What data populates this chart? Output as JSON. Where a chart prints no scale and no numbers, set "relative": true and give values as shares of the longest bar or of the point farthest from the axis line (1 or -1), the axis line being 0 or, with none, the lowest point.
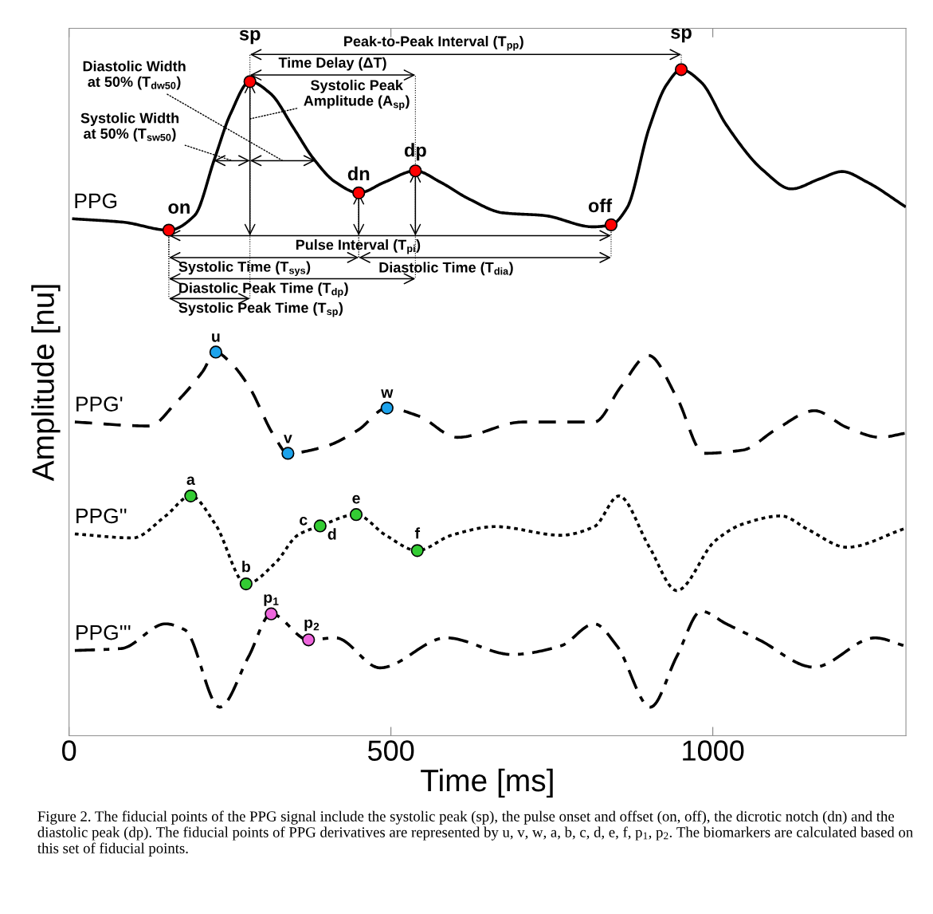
{
  "chart_data": {
    "type": "line",
    "relative": true,
    "xlabel": "Time [ms]",
    "ylabel": "Amplitude [nu]",
    "xlim": [
      0,
      1300
    ],
    "xticks": [
      0,
      500,
      1000
    ],
    "tick_labels": "x",
    "grid": false,
    "legend": false,
    "series": [
      {
        "name": "PPG",
        "color": "#000000",
        "line_style": "solid",
        "x": [
          7,
          84,
          155,
          195,
          226,
          251,
          281,
          313,
          349,
          380,
          414,
          450,
          490,
          538,
          577,
          621,
          674,
          738,
          814,
          842,
          867,
          901,
          928,
          951,
          982,
          1021,
          1078,
          1122,
          1166,
          1201,
          1240,
          1298
        ],
        "values": [
          0.776,
          0.771,
          0.759,
          0.781,
          0.866,
          0.934,
          0.982,
          0.964,
          0.912,
          0.866,
          0.831,
          0.815,
          0.831,
          0.848,
          0.831,
          0.806,
          0.785,
          0.781,
          0.764,
          0.767,
          0.793,
          0.912,
          0.977,
          1.0,
          0.981,
          0.917,
          0.849,
          0.821,
          0.836,
          0.847,
          0.831,
          0.795
        ]
      },
      {
        "name": "PPG'",
        "color": "#000000",
        "line_style": "dashed",
        "x": [
          9,
          125,
          166,
          207,
          228,
          248,
          279,
          318,
          340,
          397,
          449,
          494,
          543,
          603,
          705,
          816,
          858,
          900,
          944,
          986,
          1047,
          1097,
          1158,
          1208,
          1260,
          1298
        ],
        "values": [
          0.471,
          0.465,
          0.5,
          0.546,
          0.576,
          0.563,
          0.525,
          0.451,
          0.424,
          0.434,
          0.459,
          0.492,
          0.48,
          0.448,
          0.471,
          0.471,
          0.525,
          0.571,
          0.508,
          0.424,
          0.429,
          0.459,
          0.488,
          0.463,
          0.448,
          0.454
        ]
      },
      {
        "name": "PPG''",
        "color": "#000000",
        "line_style": "dotted",
        "x": [
          9,
          99,
          150,
          189,
          227,
          275,
          321,
          355,
          390,
          446,
          492,
          541,
          594,
          662,
          764,
          816,
          854,
          901,
          944,
          1004,
          1047,
          1106,
          1149,
          1208,
          1298
        ],
        "values": [
          0.303,
          0.297,
          0.33,
          0.36,
          0.318,
          0.228,
          0.26,
          0.301,
          0.315,
          0.332,
          0.301,
          0.278,
          0.301,
          0.314,
          0.301,
          0.314,
          0.36,
          0.284,
          0.218,
          0.293,
          0.318,
          0.33,
          0.309,
          0.283,
          0.311
        ]
      },
      {
        "name": "PPG'''",
        "color": "#000000",
        "line_style": "dashdot",
        "x": [
          9,
          81,
          150,
          180,
          234,
          279,
          314,
          372,
          414,
          483,
          586,
          688,
          764,
          816,
          851,
          903,
          944,
          982,
          1021,
          1072,
          1157,
          1252,
          1298
        ],
        "values": [
          0.128,
          0.131,
          0.168,
          0.159,
          0.043,
          0.119,
          0.183,
          0.144,
          0.147,
          0.102,
          0.147,
          0.122,
          0.135,
          0.168,
          0.135,
          0.043,
          0.119,
          0.187,
          0.168,
          0.144,
          0.103,
          0.147,
          0.135
        ]
      },
      {
        "type": "scatter",
        "color": "#ff0000",
        "marker": "circle",
        "x": [
          155,
          281,
          450,
          538,
          842,
          951
        ],
        "values": [
          0.759,
          0.982,
          0.815,
          0.848,
          0.767,
          1.0
        ]
      },
      {
        "type": "scatter",
        "color": "#1ca3ec",
        "marker": "circle",
        "x": [
          228,
          340,
          494
        ],
        "values": [
          0.576,
          0.424,
          0.492
        ]
      },
      {
        "type": "scatter",
        "color": "#33cc33",
        "marker": "circle",
        "x": [
          189,
          275,
          390,
          446,
          541
        ],
        "values": [
          0.36,
          0.228,
          0.315,
          0.332,
          0.278
        ]
      },
      {
        "type": "scatter",
        "color": "#ee66dd",
        "marker": "circle",
        "x": [
          314,
          372
        ],
        "values": [
          0.183,
          0.144
        ]
      }
    ],
    "annotations": [
      {
        "text": "on",
        "x": 155,
        "y": 0.759
      },
      {
        "text": "sp",
        "x": 281,
        "y": 0.982
      },
      {
        "text": "dn",
        "x": 450,
        "y": 0.815
      },
      {
        "text": "dp",
        "x": 538,
        "y": 0.848
      },
      {
        "text": "off",
        "x": 842,
        "y": 0.767
      },
      {
        "text": "sp",
        "x": 951,
        "y": 1.0
      },
      {
        "text": "u",
        "x": 228,
        "y": 0.576
      },
      {
        "text": "v",
        "x": 340,
        "y": 0.424
      },
      {
        "text": "w",
        "x": 494,
        "y": 0.492
      },
      {
        "text": "a",
        "x": 189,
        "y": 0.36
      },
      {
        "text": "b",
        "x": 275,
        "y": 0.228
      },
      {
        "text": "c",
        "x": 390,
        "y": 0.315
      },
      {
        "text": "d",
        "x": 390,
        "y": 0.315
      },
      {
        "text": "e",
        "x": 446,
        "y": 0.332
      },
      {
        "text": "f",
        "x": 541,
        "y": 0.278
      },
      {
        "text": "p$_{1}$",
        "x": 314,
        "y": 0.183
      },
      {
        "text": "p$_{2}$",
        "x": 372,
        "y": 0.144
      },
      "Peak-to-Peak Interval (T$_{pp}$)",
      "Time Delay (ΔT)",
      "Pulse Interval (T$_{pi}$)",
      "Systolic Time (T$_{sys}$)",
      "Diastolic Time (T$_{dia}$)",
      "Diastolic Peak Time (T$_{dp}$)",
      "Systolic Peak Time (T$_{sp}$)",
      "Systolic Peak\nAmplitude (A$_{sp}$)",
      "Diastolic Width\nat 50% (T$_{dw50}$)",
      "Systolic Width\nat 50% (T$_{sw50}$)",
      "Figure 2. The fiducial points of the PPG signal include the systolic peak (sp), the pulse onset and offset (on, off), the dicrotic notch (dn) and the diastolic peak (dp). The fiducial points of PPG derivatives are represented by u, v, w, a, b, c, d, e, f, p$_{1}$, p$_{2}$. The biomarkers are calculated based on this set of fiducial points."
    ]
  }
}
